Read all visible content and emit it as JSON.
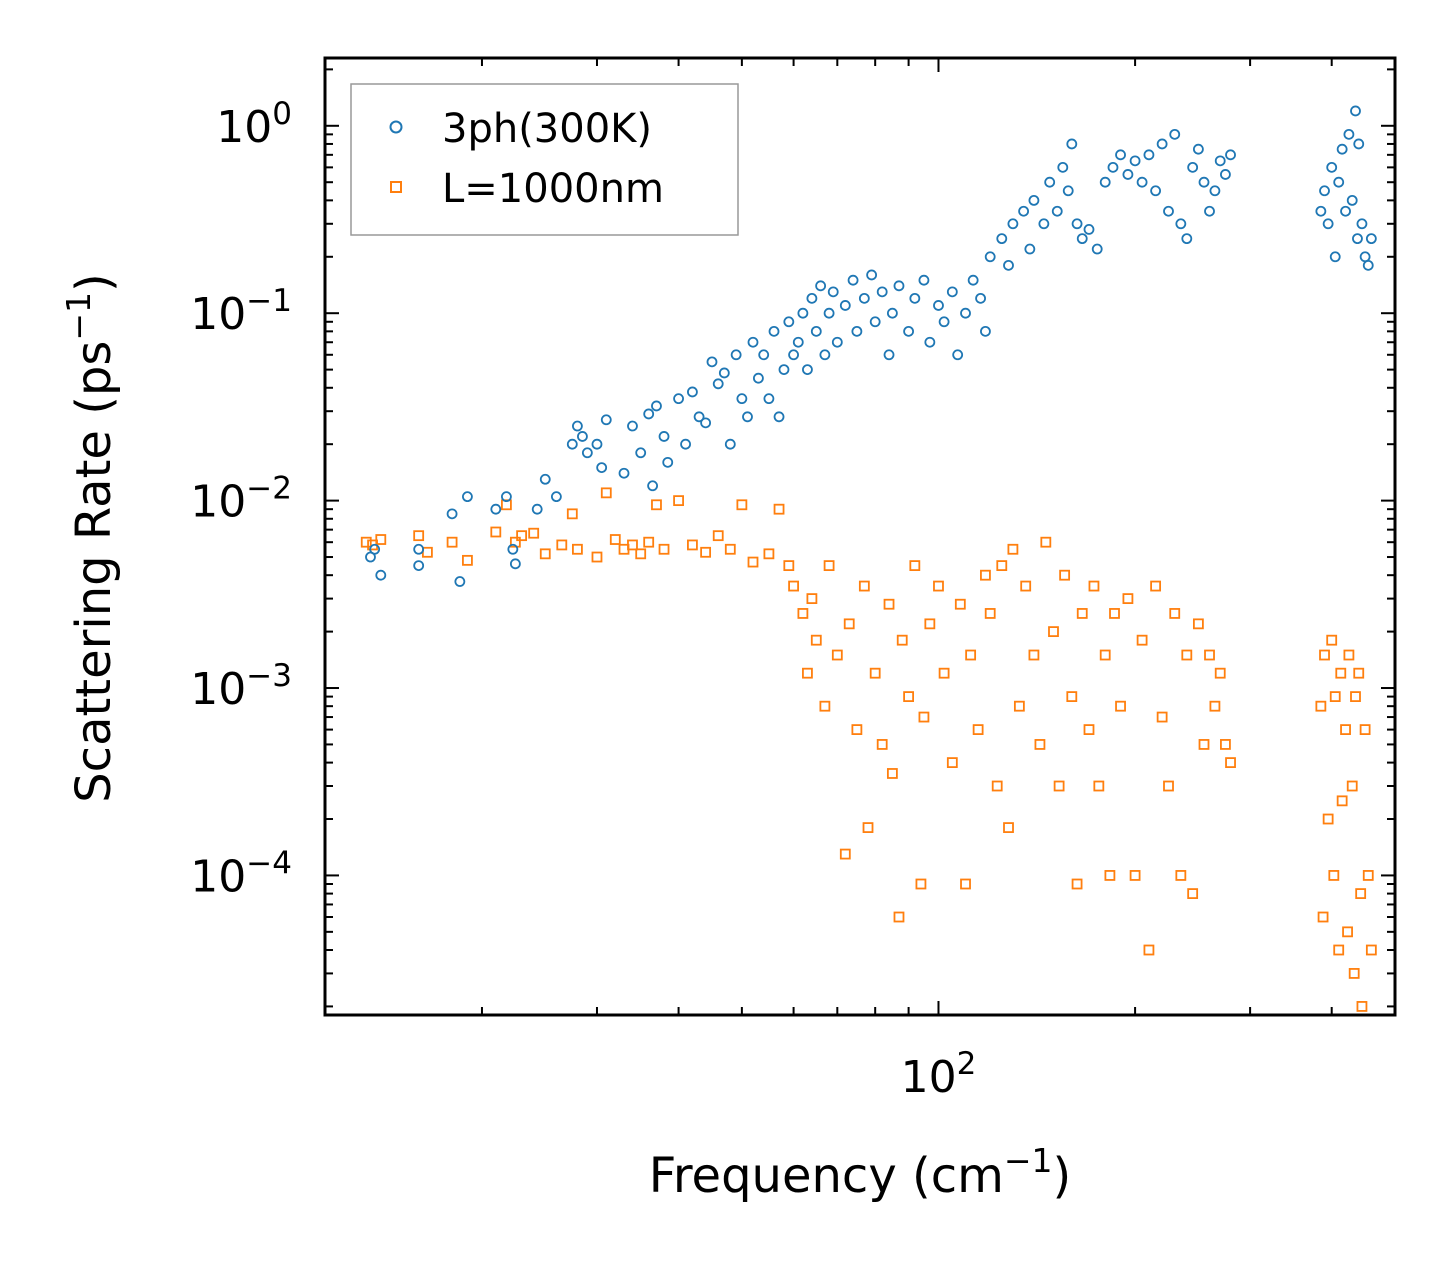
{
  "chart_data": {
    "type": "scatter",
    "title": "",
    "xlabel": "Frequency (cm",
    "xlabel_sup": "−1",
    "xlabel_end": ")",
    "ylabel": "Scattering Rate (ps",
    "ylabel_sup": "−1",
    "ylabel_end": ")",
    "xscale": "log",
    "yscale": "log",
    "xlim": [
      11.5,
      500
    ],
    "ylim": [
      1.8e-05,
      2.3
    ],
    "xticks": [
      {
        "base": "10",
        "exp": "2",
        "value": 100
      }
    ],
    "yticks": [
      {
        "base": "10",
        "exp": "0",
        "value": 1
      },
      {
        "base": "10",
        "exp": "−1",
        "value": 0.1
      },
      {
        "base": "10",
        "exp": "−2",
        "value": 0.01
      },
      {
        "base": "10",
        "exp": "−3",
        "value": 0.001
      },
      {
        "base": "10",
        "exp": "−4",
        "value": 0.0001
      }
    ],
    "legend": {
      "position": "top-left",
      "entries": [
        {
          "label": "3ph(300K)",
          "marker": "circle",
          "color": "#1f77b4"
        },
        {
          "label": "L=1000nm",
          "marker": "square",
          "color": "#ff7f0e"
        }
      ]
    },
    "series": [
      {
        "name": "3ph(300K)",
        "marker": "circle",
        "color": "#1f77b4",
        "points": [
          [
            13.5,
            0.005
          ],
          [
            13.7,
            0.0055
          ],
          [
            14.0,
            0.004
          ],
          [
            16.0,
            0.0055
          ],
          [
            16.0,
            0.0045
          ],
          [
            18.0,
            0.0085
          ],
          [
            18.5,
            0.0037
          ],
          [
            19.0,
            0.0105
          ],
          [
            21.0,
            0.009
          ],
          [
            21.8,
            0.0105
          ],
          [
            22.3,
            0.0055
          ],
          [
            22.5,
            0.0046
          ],
          [
            24.3,
            0.009
          ],
          [
            25.0,
            0.013
          ],
          [
            26.0,
            0.0105
          ],
          [
            27.5,
            0.02
          ],
          [
            28.0,
            0.025
          ],
          [
            28.5,
            0.022
          ],
          [
            29.0,
            0.018
          ],
          [
            30.0,
            0.02
          ],
          [
            30.5,
            0.015
          ],
          [
            31.0,
            0.027
          ],
          [
            33.0,
            0.014
          ],
          [
            34.0,
            0.025
          ],
          [
            35.0,
            0.018
          ],
          [
            36.0,
            0.029
          ],
          [
            36.5,
            0.012
          ],
          [
            37.0,
            0.032
          ],
          [
            38.0,
            0.022
          ],
          [
            38.5,
            0.016
          ],
          [
            40.0,
            0.035
          ],
          [
            41.0,
            0.02
          ],
          [
            42.0,
            0.038
          ],
          [
            43.0,
            0.028
          ],
          [
            44.0,
            0.026
          ],
          [
            45.0,
            0.055
          ],
          [
            46.0,
            0.042
          ],
          [
            47.0,
            0.048
          ],
          [
            48.0,
            0.02
          ],
          [
            49.0,
            0.06
          ],
          [
            50.0,
            0.035
          ],
          [
            51.0,
            0.028
          ],
          [
            52.0,
            0.07
          ],
          [
            53.0,
            0.045
          ],
          [
            54.0,
            0.06
          ],
          [
            55.0,
            0.035
          ],
          [
            56.0,
            0.08
          ],
          [
            57.0,
            0.028
          ],
          [
            58.0,
            0.05
          ],
          [
            59.0,
            0.09
          ],
          [
            60.0,
            0.06
          ],
          [
            61.0,
            0.07
          ],
          [
            62.0,
            0.1
          ],
          [
            63.0,
            0.05
          ],
          [
            64.0,
            0.12
          ],
          [
            65.0,
            0.08
          ],
          [
            66.0,
            0.14
          ],
          [
            67.0,
            0.06
          ],
          [
            68.0,
            0.1
          ],
          [
            69.0,
            0.13
          ],
          [
            70.0,
            0.07
          ],
          [
            72.0,
            0.11
          ],
          [
            74.0,
            0.15
          ],
          [
            75.0,
            0.08
          ],
          [
            77.0,
            0.12
          ],
          [
            79.0,
            0.16
          ],
          [
            80.0,
            0.09
          ],
          [
            82.0,
            0.13
          ],
          [
            84.0,
            0.06
          ],
          [
            85.0,
            0.1
          ],
          [
            87.0,
            0.14
          ],
          [
            90.0,
            0.08
          ],
          [
            92.0,
            0.12
          ],
          [
            95.0,
            0.15
          ],
          [
            97.0,
            0.07
          ],
          [
            100.0,
            0.11
          ],
          [
            102.0,
            0.09
          ],
          [
            105.0,
            0.13
          ],
          [
            107.0,
            0.06
          ],
          [
            110.0,
            0.1
          ],
          [
            113.0,
            0.15
          ],
          [
            116.0,
            0.12
          ],
          [
            118.0,
            0.08
          ],
          [
            120.0,
            0.2
          ],
          [
            125.0,
            0.25
          ],
          [
            128.0,
            0.18
          ],
          [
            130.0,
            0.3
          ],
          [
            135.0,
            0.35
          ],
          [
            138.0,
            0.22
          ],
          [
            140.0,
            0.4
          ],
          [
            145.0,
            0.3
          ],
          [
            148.0,
            0.5
          ],
          [
            152.0,
            0.35
          ],
          [
            155.0,
            0.6
          ],
          [
            158.0,
            0.45
          ],
          [
            160.0,
            0.8
          ],
          [
            163.0,
            0.3
          ],
          [
            166.0,
            0.25
          ],
          [
            170.0,
            0.28
          ],
          [
            175.0,
            0.22
          ],
          [
            180.0,
            0.5
          ],
          [
            185.0,
            0.6
          ],
          [
            190.0,
            0.7
          ],
          [
            195.0,
            0.55
          ],
          [
            200.0,
            0.65
          ],
          [
            205.0,
            0.5
          ],
          [
            210.0,
            0.7
          ],
          [
            215.0,
            0.45
          ],
          [
            220.0,
            0.8
          ],
          [
            225.0,
            0.35
          ],
          [
            230.0,
            0.9
          ],
          [
            235.0,
            0.3
          ],
          [
            240.0,
            0.25
          ],
          [
            245.0,
            0.6
          ],
          [
            250.0,
            0.75
          ],
          [
            255.0,
            0.5
          ],
          [
            260.0,
            0.35
          ],
          [
            265.0,
            0.45
          ],
          [
            270.0,
            0.65
          ],
          [
            275.0,
            0.55
          ],
          [
            280.0,
            0.7
          ],
          [
            385.0,
            0.35
          ],
          [
            390.0,
            0.45
          ],
          [
            395.0,
            0.3
          ],
          [
            400.0,
            0.6
          ],
          [
            405.0,
            0.2
          ],
          [
            410.0,
            0.5
          ],
          [
            415.0,
            0.75
          ],
          [
            420.0,
            0.35
          ],
          [
            425.0,
            0.9
          ],
          [
            430.0,
            0.4
          ],
          [
            435.0,
            1.2
          ],
          [
            438.0,
            0.25
          ],
          [
            440.0,
            0.8
          ],
          [
            445.0,
            0.3
          ],
          [
            450.0,
            0.2
          ],
          [
            455.0,
            0.18
          ],
          [
            460.0,
            0.25
          ]
        ]
      },
      {
        "name": "L=1000nm",
        "marker": "square",
        "color": "#ff7f0e",
        "points": [
          [
            13.3,
            0.006
          ],
          [
            13.6,
            0.0058
          ],
          [
            14.0,
            0.0062
          ],
          [
            16.0,
            0.0065
          ],
          [
            16.5,
            0.0053
          ],
          [
            18.0,
            0.006
          ],
          [
            19.0,
            0.0048
          ],
          [
            21.0,
            0.0068
          ],
          [
            21.8,
            0.0095
          ],
          [
            22.5,
            0.006
          ],
          [
            23.0,
            0.0065
          ],
          [
            24.0,
            0.0067
          ],
          [
            25.0,
            0.0052
          ],
          [
            26.5,
            0.0058
          ],
          [
            27.5,
            0.0085
          ],
          [
            28.0,
            0.0055
          ],
          [
            30.0,
            0.005
          ],
          [
            31.0,
            0.011
          ],
          [
            32.0,
            0.0062
          ],
          [
            33.0,
            0.0055
          ],
          [
            34.0,
            0.0058
          ],
          [
            35.0,
            0.0052
          ],
          [
            36.0,
            0.006
          ],
          [
            37.0,
            0.0095
          ],
          [
            38.0,
            0.0055
          ],
          [
            40.0,
            0.01
          ],
          [
            42.0,
            0.0058
          ],
          [
            44.0,
            0.0053
          ],
          [
            46.0,
            0.0065
          ],
          [
            48.0,
            0.0055
          ],
          [
            50.0,
            0.0095
          ],
          [
            52.0,
            0.0047
          ],
          [
            55.0,
            0.0052
          ],
          [
            57.0,
            0.009
          ],
          [
            59.0,
            0.0045
          ],
          [
            60.0,
            0.0035
          ],
          [
            62.0,
            0.0025
          ],
          [
            63.0,
            0.0012
          ],
          [
            64.0,
            0.003
          ],
          [
            65.0,
            0.0018
          ],
          [
            67.0,
            0.0008
          ],
          [
            68.0,
            0.0045
          ],
          [
            70.0,
            0.0015
          ],
          [
            72.0,
            0.00013
          ],
          [
            73.0,
            0.0022
          ],
          [
            75.0,
            0.0006
          ],
          [
            77.0,
            0.0035
          ],
          [
            78.0,
            0.00018
          ],
          [
            80.0,
            0.0012
          ],
          [
            82.0,
            0.0005
          ],
          [
            84.0,
            0.0028
          ],
          [
            85.0,
            0.00035
          ],
          [
            87.0,
            6e-05
          ],
          [
            88.0,
            0.0018
          ],
          [
            90.0,
            0.0009
          ],
          [
            92.0,
            0.0045
          ],
          [
            94.0,
            9e-05
          ],
          [
            95.0,
            0.0007
          ],
          [
            97.0,
            0.0022
          ],
          [
            100.0,
            0.0035
          ],
          [
            102.0,
            0.0012
          ],
          [
            105.0,
            0.0004
          ],
          [
            108.0,
            0.0028
          ],
          [
            110.0,
            9e-05
          ],
          [
            112.0,
            0.0015
          ],
          [
            115.0,
            0.0006
          ],
          [
            118.0,
            0.004
          ],
          [
            120.0,
            0.0025
          ],
          [
            123.0,
            0.0003
          ],
          [
            125.0,
            0.0045
          ],
          [
            128.0,
            0.00018
          ],
          [
            130.0,
            0.0055
          ],
          [
            133.0,
            0.0008
          ],
          [
            136.0,
            0.0035
          ],
          [
            140.0,
            0.0015
          ],
          [
            143.0,
            0.0005
          ],
          [
            146.0,
            0.006
          ],
          [
            150.0,
            0.002
          ],
          [
            153.0,
            0.0003
          ],
          [
            156.0,
            0.004
          ],
          [
            160.0,
            0.0009
          ],
          [
            163.0,
            9e-05
          ],
          [
            166.0,
            0.0025
          ],
          [
            170.0,
            0.0006
          ],
          [
            173.0,
            0.0035
          ],
          [
            176.0,
            0.0003
          ],
          [
            180.0,
            0.0015
          ],
          [
            183.0,
            0.0001
          ],
          [
            186.0,
            0.0025
          ],
          [
            190.0,
            0.0008
          ],
          [
            195.0,
            0.003
          ],
          [
            200.0,
            0.0001
          ],
          [
            205.0,
            0.0018
          ],
          [
            210.0,
            4e-05
          ],
          [
            215.0,
            0.0035
          ],
          [
            220.0,
            0.0007
          ],
          [
            225.0,
            0.0003
          ],
          [
            230.0,
            0.0025
          ],
          [
            235.0,
            0.0001
          ],
          [
            240.0,
            0.0015
          ],
          [
            245.0,
            8e-05
          ],
          [
            250.0,
            0.0022
          ],
          [
            255.0,
            0.0005
          ],
          [
            260.0,
            0.0015
          ],
          [
            265.0,
            0.0008
          ],
          [
            270.0,
            0.0012
          ],
          [
            275.0,
            0.0005
          ],
          [
            280.0,
            0.0004
          ],
          [
            385.0,
            0.0008
          ],
          [
            388.0,
            6e-05
          ],
          [
            390.0,
            0.0015
          ],
          [
            395.0,
            0.0002
          ],
          [
            400.0,
            0.0018
          ],
          [
            403.0,
            0.0001
          ],
          [
            405.0,
            0.0009
          ],
          [
            410.0,
            4e-05
          ],
          [
            413.0,
            0.0012
          ],
          [
            415.0,
            0.00025
          ],
          [
            420.0,
            0.0006
          ],
          [
            423.0,
            5e-05
          ],
          [
            425.0,
            0.0015
          ],
          [
            430.0,
            0.0003
          ],
          [
            433.0,
            3e-05
          ],
          [
            435.0,
            0.0009
          ],
          [
            440.0,
            0.0012
          ],
          [
            443.0,
            8e-05
          ],
          [
            445.0,
            2e-05
          ],
          [
            450.0,
            0.0006
          ],
          [
            455.0,
            0.0001
          ],
          [
            460.0,
            4e-05
          ]
        ]
      }
    ]
  }
}
